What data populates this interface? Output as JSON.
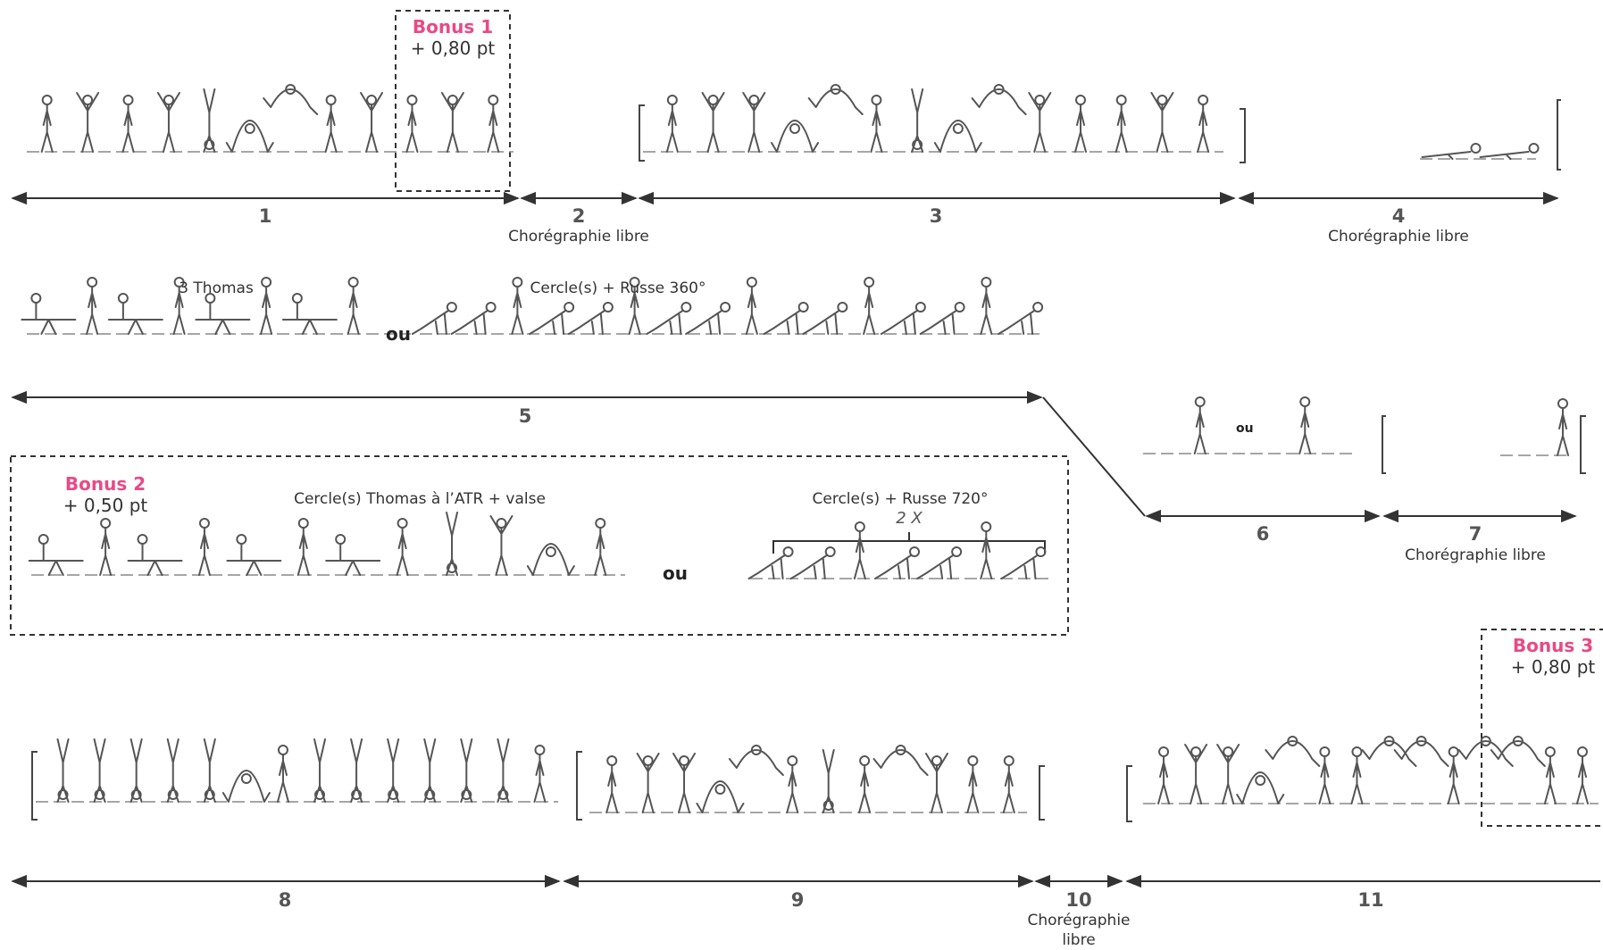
{
  "colors": {
    "accent": "#e84a86",
    "line": "#333333",
    "figure": "#555555"
  },
  "segments": [
    {
      "number": "1",
      "label": ""
    },
    {
      "number": "2",
      "label": "Chorégraphie libre"
    },
    {
      "number": "3",
      "label": ""
    },
    {
      "number": "4",
      "label": "Chorégraphie libre"
    },
    {
      "number": "5",
      "label": ""
    },
    {
      "number": "6",
      "label": ""
    },
    {
      "number": "7",
      "label": "Chorégraphie libre"
    },
    {
      "number": "8",
      "label": ""
    },
    {
      "number": "9",
      "label": ""
    },
    {
      "number": "10",
      "label": "Chorégraphie libre"
    },
    {
      "number": "11",
      "label": ""
    }
  ],
  "bonuses": [
    {
      "title": "Bonus 1",
      "value": "+ 0,80 pt"
    },
    {
      "title": "Bonus 2",
      "value": "+ 0,50 pt"
    },
    {
      "title": "Bonus 3",
      "value": "+ 0,80 pt"
    }
  ],
  "captions": {
    "thomas": "3 Thomas",
    "cercle_russe_360": "Cercle(s) + Russe 360°",
    "cercle_thomas_atr": "Cercle(s) Thomas à l’ATR + valse",
    "cercle_russe_720": "Cercle(s) + Russe 720°",
    "repeat": "2 X"
  },
  "or_word": "ou"
}
